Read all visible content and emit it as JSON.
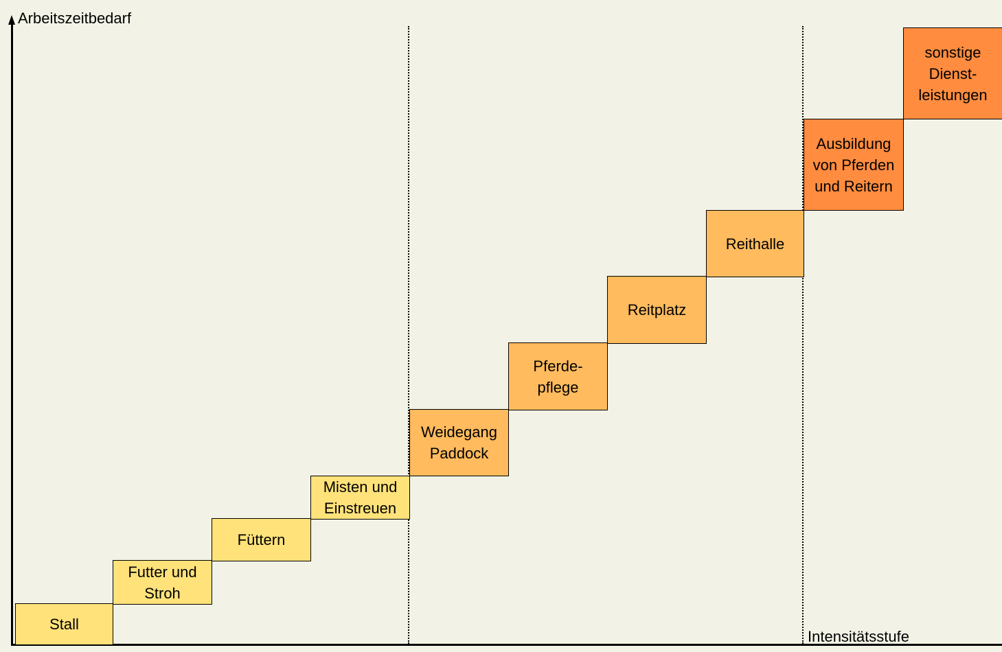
{
  "axes": {
    "y_label": "Arbeitszeitbedarf",
    "x_label": "Intensitätsstufe"
  },
  "colors": {
    "background": "#f2f3e6",
    "level1": "#ffe27a",
    "level2": "#ffbb5e",
    "level3": "#ff8c3f"
  },
  "steps": [
    {
      "label": "Stall",
      "level": 1
    },
    {
      "label": "Futter und\nStroh",
      "level": 1
    },
    {
      "label": "Füttern",
      "level": 1
    },
    {
      "label": "Misten und\nEinstreuen",
      "level": 1
    },
    {
      "label": "Weidegang\nPaddock",
      "level": 2
    },
    {
      "label": "Pferde-\npflege",
      "level": 2
    },
    {
      "label": "Reitplatz",
      "level": 2
    },
    {
      "label": "Reithalle",
      "level": 2
    },
    {
      "label": "Ausbildung\nvon Pferden\nund Reitern",
      "level": 3
    },
    {
      "label": "sonstige\nDienst-\nleistungen",
      "level": 3
    }
  ]
}
